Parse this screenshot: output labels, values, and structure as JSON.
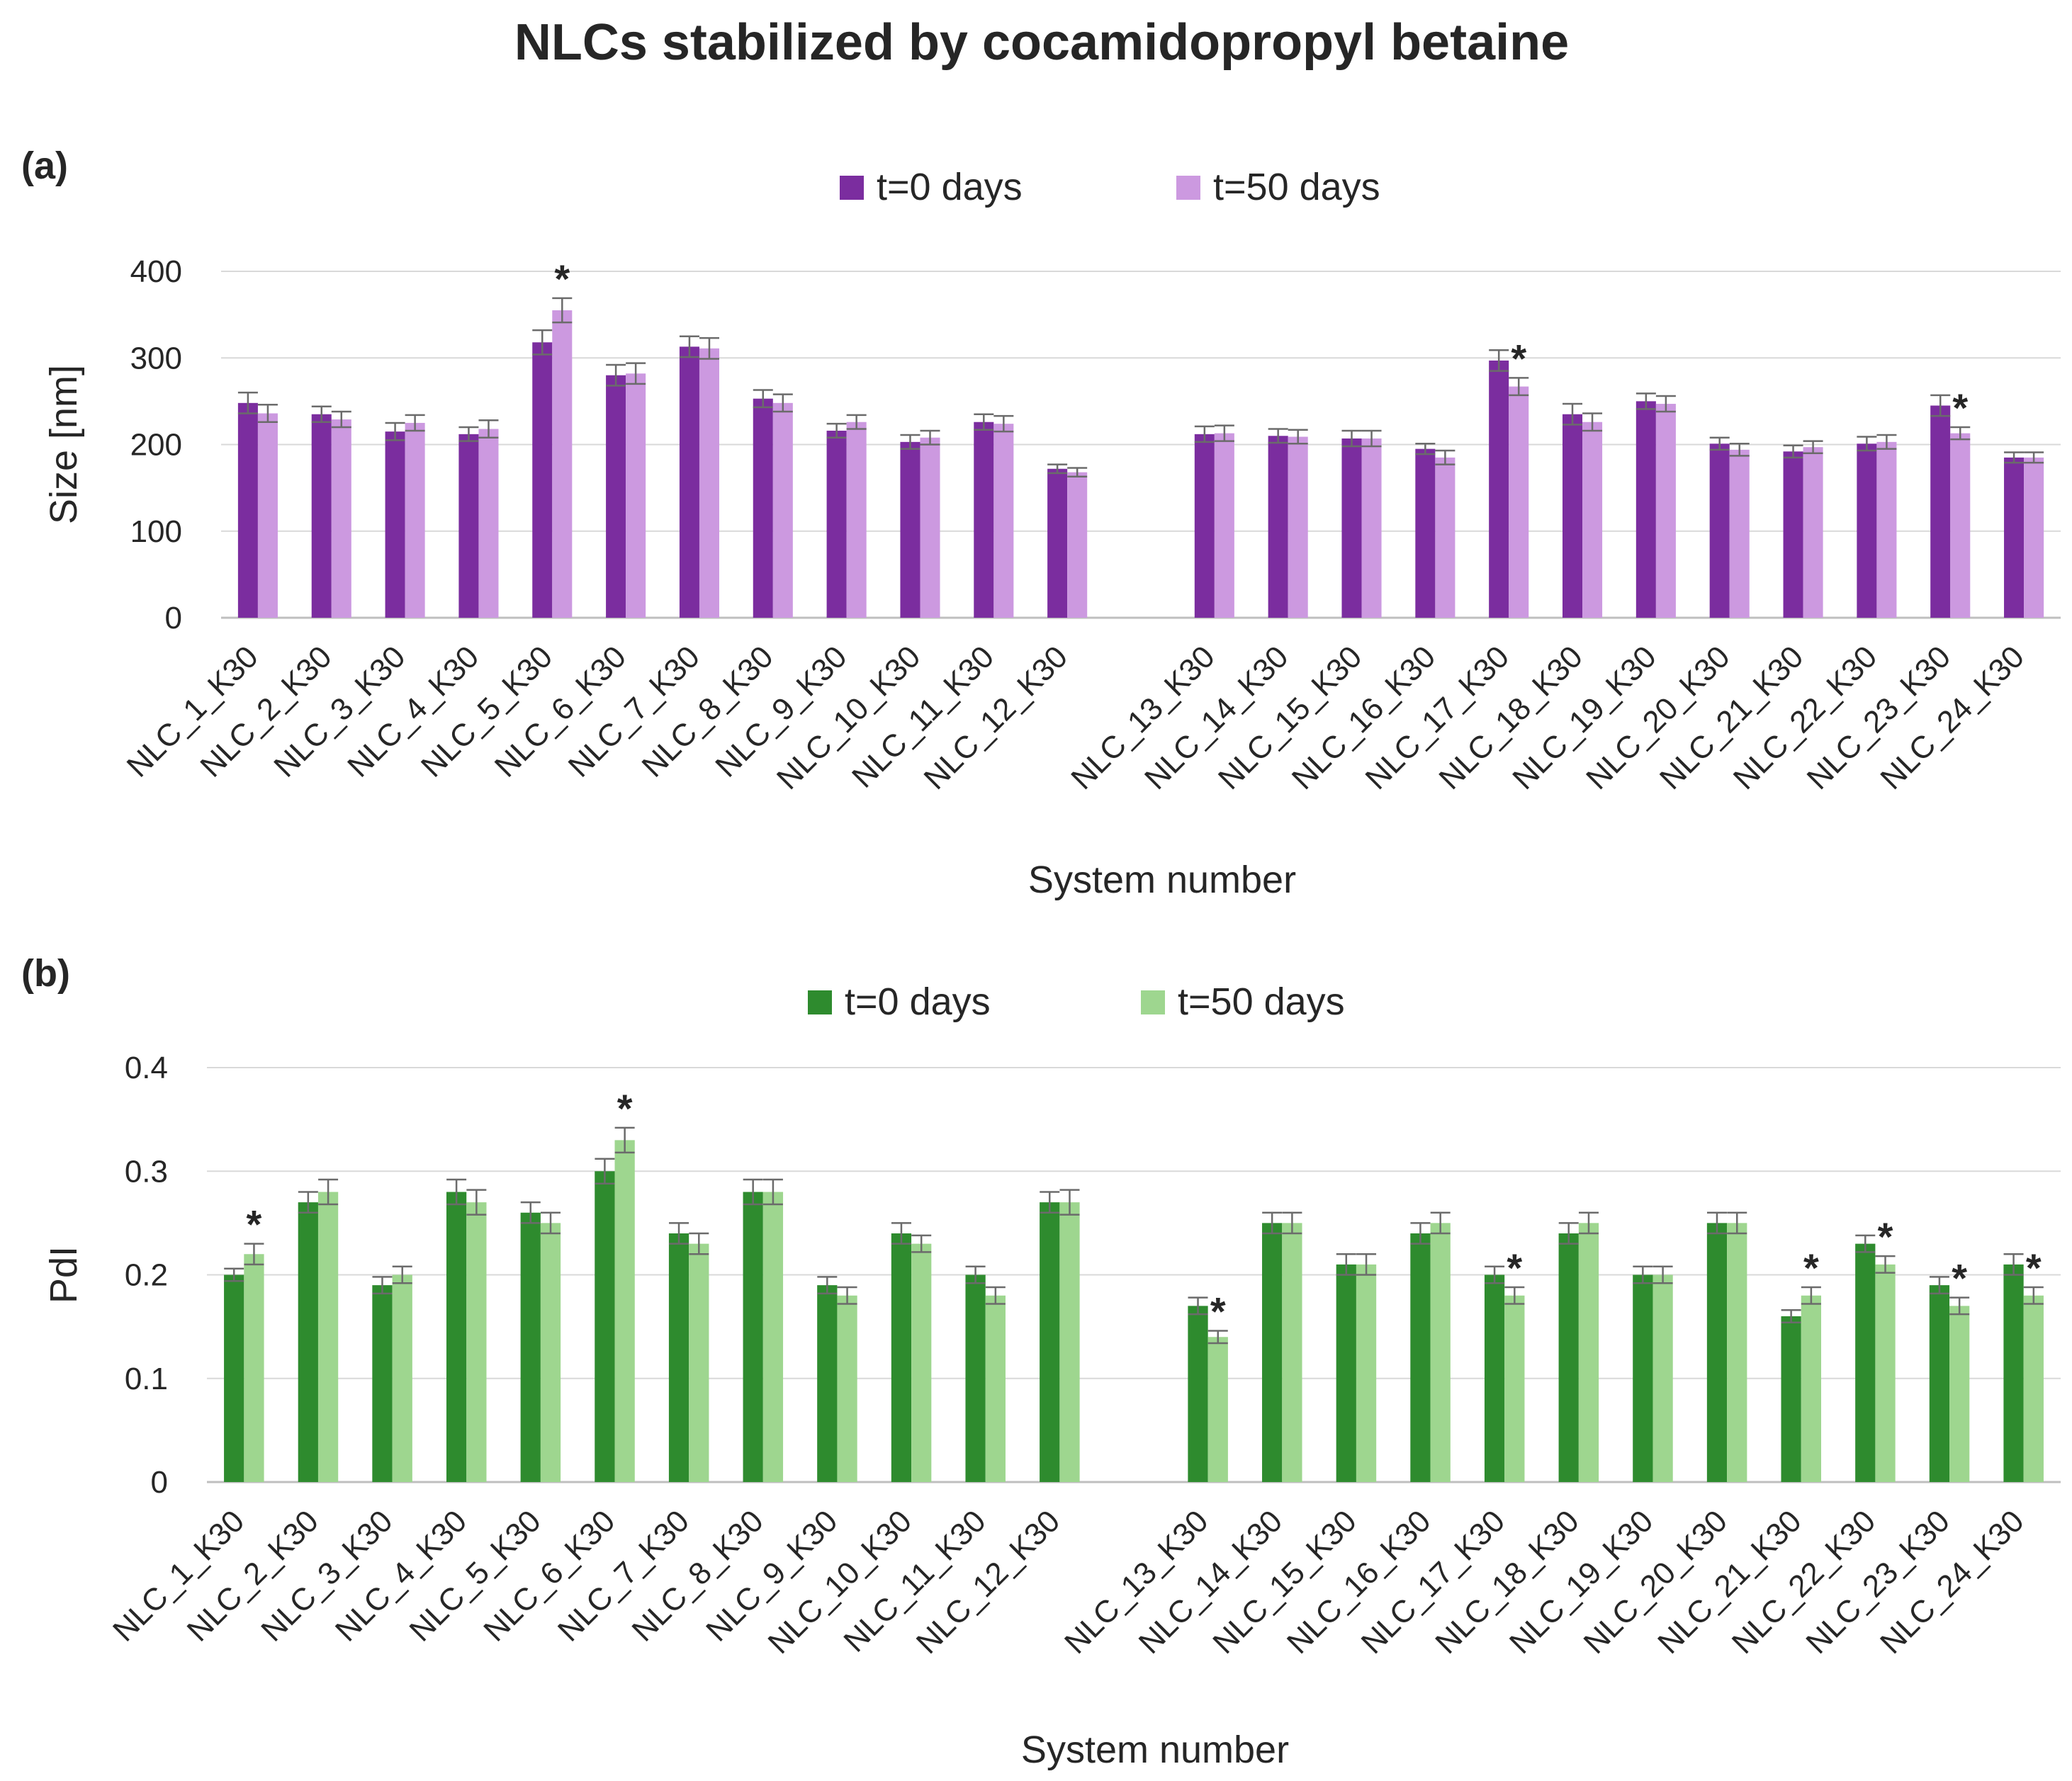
{
  "figure_title": "NLCs stabilized by cocamidopropyl  betaine",
  "chart_data": [
    {
      "type": "bar",
      "panel_label": "(a)",
      "xlabel": "System number",
      "ylabel": "Size  [nm]",
      "ylim": [
        0,
        400
      ],
      "yticks": [
        "0",
        "100",
        "200",
        "300",
        "400"
      ],
      "legend_position": "top-center",
      "categories": [
        "NLC_1_K30",
        "NLC_2_K30",
        "NLC_3_K30",
        "NLC_4_K30",
        "NLC_5_K30",
        "NLC_6_K30",
        "NLC_7_K30",
        "NLC_8_K30",
        "NLC_9_K30",
        "NLC_10_K30",
        "NLC_11_K30",
        "NLC_12_K30",
        "",
        "NLC_13_K30",
        "NLC_14_K30",
        "NLC_15_K30",
        "NLC_16_K30",
        "NLC_17_K30",
        "NLC_18_K30",
        "NLC_19_K30",
        "NLC_20_K30",
        "NLC_21_K30",
        "NLC_22_K30",
        "NLC_23_K30",
        "NLC_24_K30"
      ],
      "series": [
        {
          "name": "t=0 days",
          "color": "#7b2d9f",
          "values": [
            248,
            235,
            215,
            212,
            318,
            280,
            313,
            253,
            216,
            203,
            226,
            172,
            null,
            212,
            210,
            207,
            195,
            297,
            235,
            250,
            201,
            192,
            201,
            245,
            185
          ],
          "errors": [
            12,
            9,
            10,
            8,
            14,
            12,
            12,
            10,
            8,
            8,
            9,
            5,
            null,
            9,
            8,
            9,
            6,
            12,
            12,
            9,
            7,
            7,
            8,
            12,
            6
          ]
        },
        {
          "name": "t=50 days",
          "color": "#cc99e0",
          "values": [
            236,
            229,
            225,
            218,
            355,
            282,
            311,
            248,
            226,
            208,
            224,
            168,
            null,
            213,
            209,
            207,
            185,
            267,
            226,
            247,
            194,
            197,
            203,
            213,
            185
          ],
          "errors": [
            10,
            9,
            9,
            10,
            14,
            12,
            12,
            10,
            8,
            8,
            9,
            5,
            null,
            9,
            8,
            9,
            8,
            10,
            10,
            9,
            7,
            7,
            8,
            7,
            6
          ]
        }
      ],
      "significance": [
        "",
        "",
        "",
        "",
        "*",
        "",
        "",
        "",
        "",
        "",
        "",
        "",
        "",
        "",
        "",
        "",
        "",
        "*",
        "",
        "",
        "",
        "",
        "",
        "*",
        ""
      ]
    },
    {
      "type": "bar",
      "panel_label": "(b)",
      "xlabel": "System number",
      "ylabel": "PdI",
      "ylim": [
        0,
        0.4
      ],
      "yticks": [
        "0",
        "0.1",
        "0.2",
        "0.3",
        "0.4"
      ],
      "legend_position": "top-center",
      "categories": [
        "NLC_1_K30",
        "NLC_2_K30",
        "NLC_3_K30",
        "NLC_4_K30",
        "NLC_5_K30",
        "NLC_6_K30",
        "NLC_7_K30",
        "NLC_8_K30",
        "NLC_9_K30",
        "NLC_10_K30",
        "NLC_11_K30",
        "NLC_12_K30",
        "",
        "NLC_13_K30",
        "NLC_14_K30",
        "NLC_15_K30",
        "NLC_16_K30",
        "NLC_17_K30",
        "NLC_18_K30",
        "NLC_19_K30",
        "NLC_20_K30",
        "NLC_21_K30",
        "NLC_22_K30",
        "NLC_23_K30",
        "NLC_24_K30"
      ],
      "series": [
        {
          "name": "t=0 days",
          "color": "#2e8b2e",
          "values": [
            0.2,
            0.27,
            0.19,
            0.28,
            0.26,
            0.3,
            0.24,
            0.28,
            0.19,
            0.24,
            0.2,
            0.27,
            null,
            0.17,
            0.25,
            0.21,
            0.24,
            0.2,
            0.24,
            0.2,
            0.25,
            0.16,
            0.23,
            0.19,
            0.21
          ],
          "errors": [
            0.006,
            0.01,
            0.008,
            0.012,
            0.01,
            0.012,
            0.01,
            0.012,
            0.008,
            0.01,
            0.008,
            0.01,
            null,
            0.008,
            0.01,
            0.01,
            0.01,
            0.008,
            0.01,
            0.008,
            0.01,
            0.006,
            0.008,
            0.008,
            0.01
          ]
        },
        {
          "name": "t=50 days",
          "color": "#9ed68f",
          "values": [
            0.22,
            0.28,
            0.2,
            0.27,
            0.25,
            0.33,
            0.23,
            0.28,
            0.18,
            0.23,
            0.18,
            0.27,
            null,
            0.14,
            0.25,
            0.21,
            0.25,
            0.18,
            0.25,
            0.2,
            0.25,
            0.18,
            0.21,
            0.17,
            0.18
          ],
          "errors": [
            0.01,
            0.012,
            0.008,
            0.012,
            0.01,
            0.012,
            0.01,
            0.012,
            0.008,
            0.008,
            0.008,
            0.012,
            null,
            0.006,
            0.01,
            0.01,
            0.01,
            0.008,
            0.01,
            0.008,
            0.01,
            0.008,
            0.008,
            0.008,
            0.008
          ]
        }
      ],
      "significance": [
        "*",
        "",
        "",
        "",
        "",
        "*",
        "",
        "",
        "",
        "",
        "",
        "",
        "",
        "*",
        "",
        "",
        "",
        "*",
        "",
        "",
        "",
        "*",
        "*",
        "*",
        "*"
      ]
    }
  ]
}
